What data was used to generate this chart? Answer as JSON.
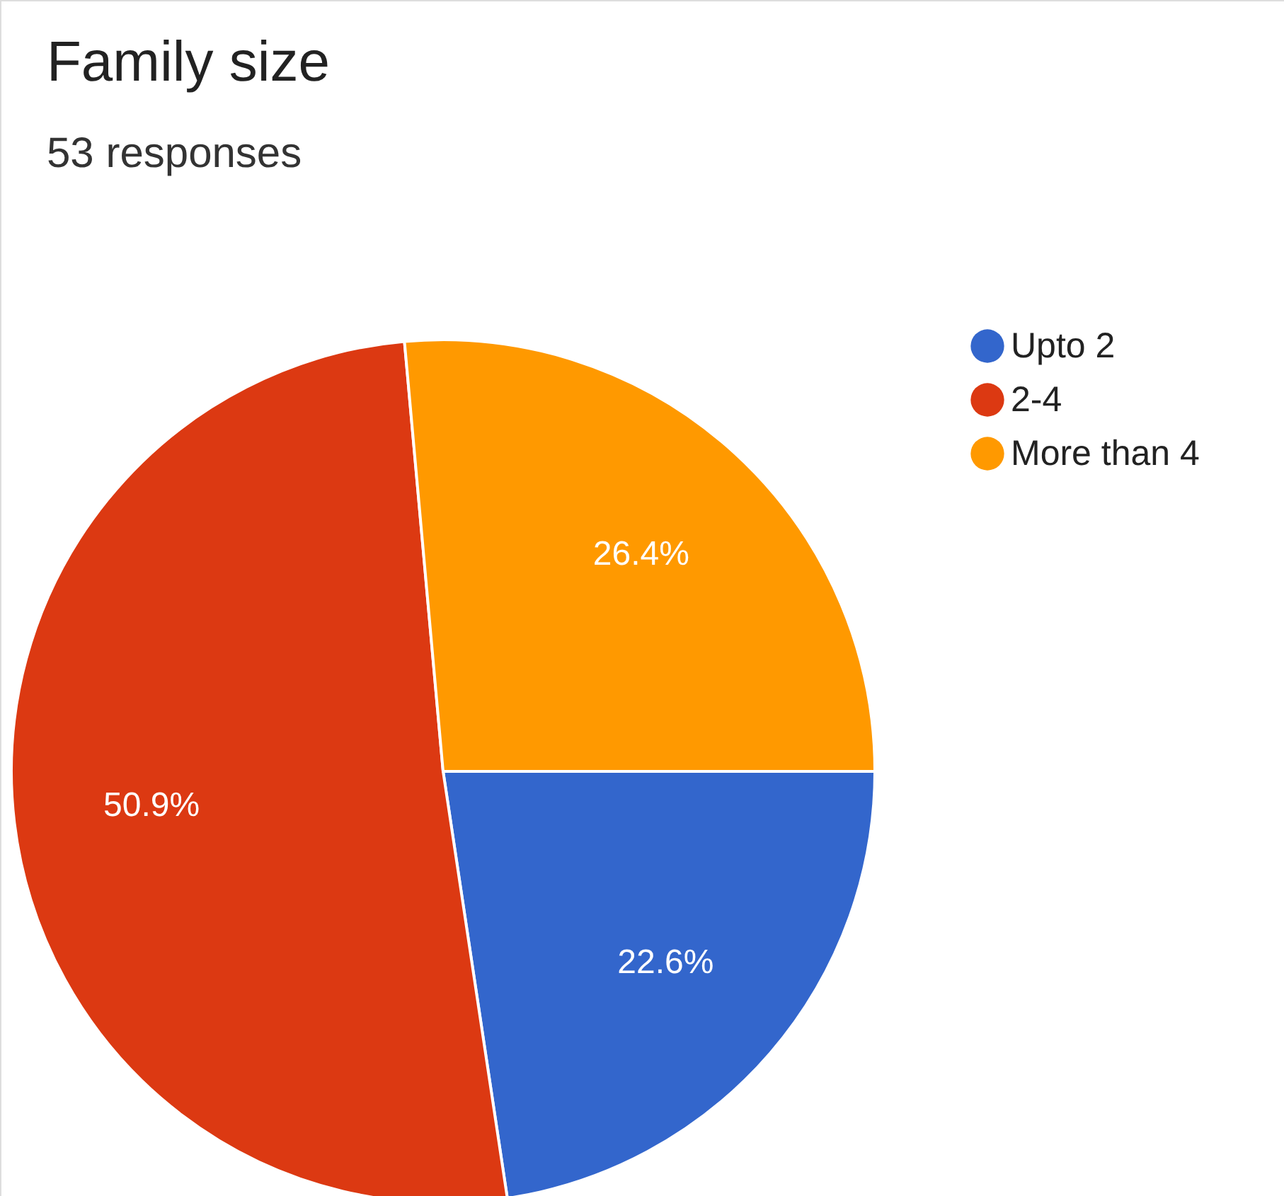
{
  "chart_data": {
    "type": "pie",
    "title": "Family size",
    "subtitle": "53 responses",
    "categories": [
      "Upto 2",
      "2-4",
      "More than 4"
    ],
    "values": [
      22.6,
      50.9,
      26.4
    ],
    "colors": [
      "#3366cc",
      "#dc3912",
      "#ff9900"
    ],
    "value_labels": [
      "22.6%",
      "50.9%",
      "26.4%"
    ],
    "legend": "right"
  }
}
